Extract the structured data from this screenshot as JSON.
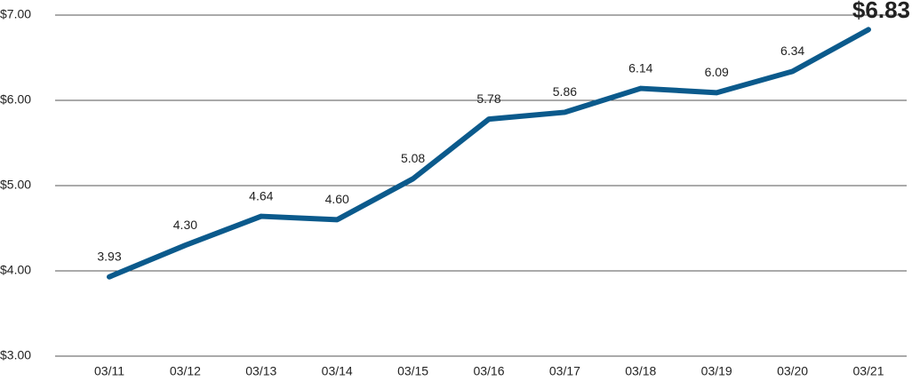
{
  "chart_data": {
    "type": "line",
    "categories": [
      "03/11",
      "03/12",
      "03/13",
      "03/14",
      "03/15",
      "03/16",
      "03/17",
      "03/18",
      "03/19",
      "03/20",
      "03/21"
    ],
    "series": [
      {
        "color": "#0b5a8c",
        "values": [
          3.93,
          4.3,
          4.64,
          4.6,
          5.08,
          5.78,
          5.86,
          6.14,
          6.09,
          6.34,
          6.83
        ],
        "value_labels": [
          "3.93",
          "4.30",
          "4.64",
          "4.60",
          "5.08",
          "5.78",
          "5.86",
          "6.14",
          "6.09",
          "6.34",
          "$6.83"
        ]
      }
    ],
    "ylim": [
      3,
      7
    ],
    "yticks": [
      {
        "value": 3,
        "label": "$3.00"
      },
      {
        "value": 4,
        "label": "$4.00"
      },
      {
        "value": 5,
        "label": "$5.00"
      },
      {
        "value": 6,
        "label": "$6.00"
      },
      {
        "value": 7,
        "label": "$7.00"
      }
    ],
    "grid": true
  }
}
